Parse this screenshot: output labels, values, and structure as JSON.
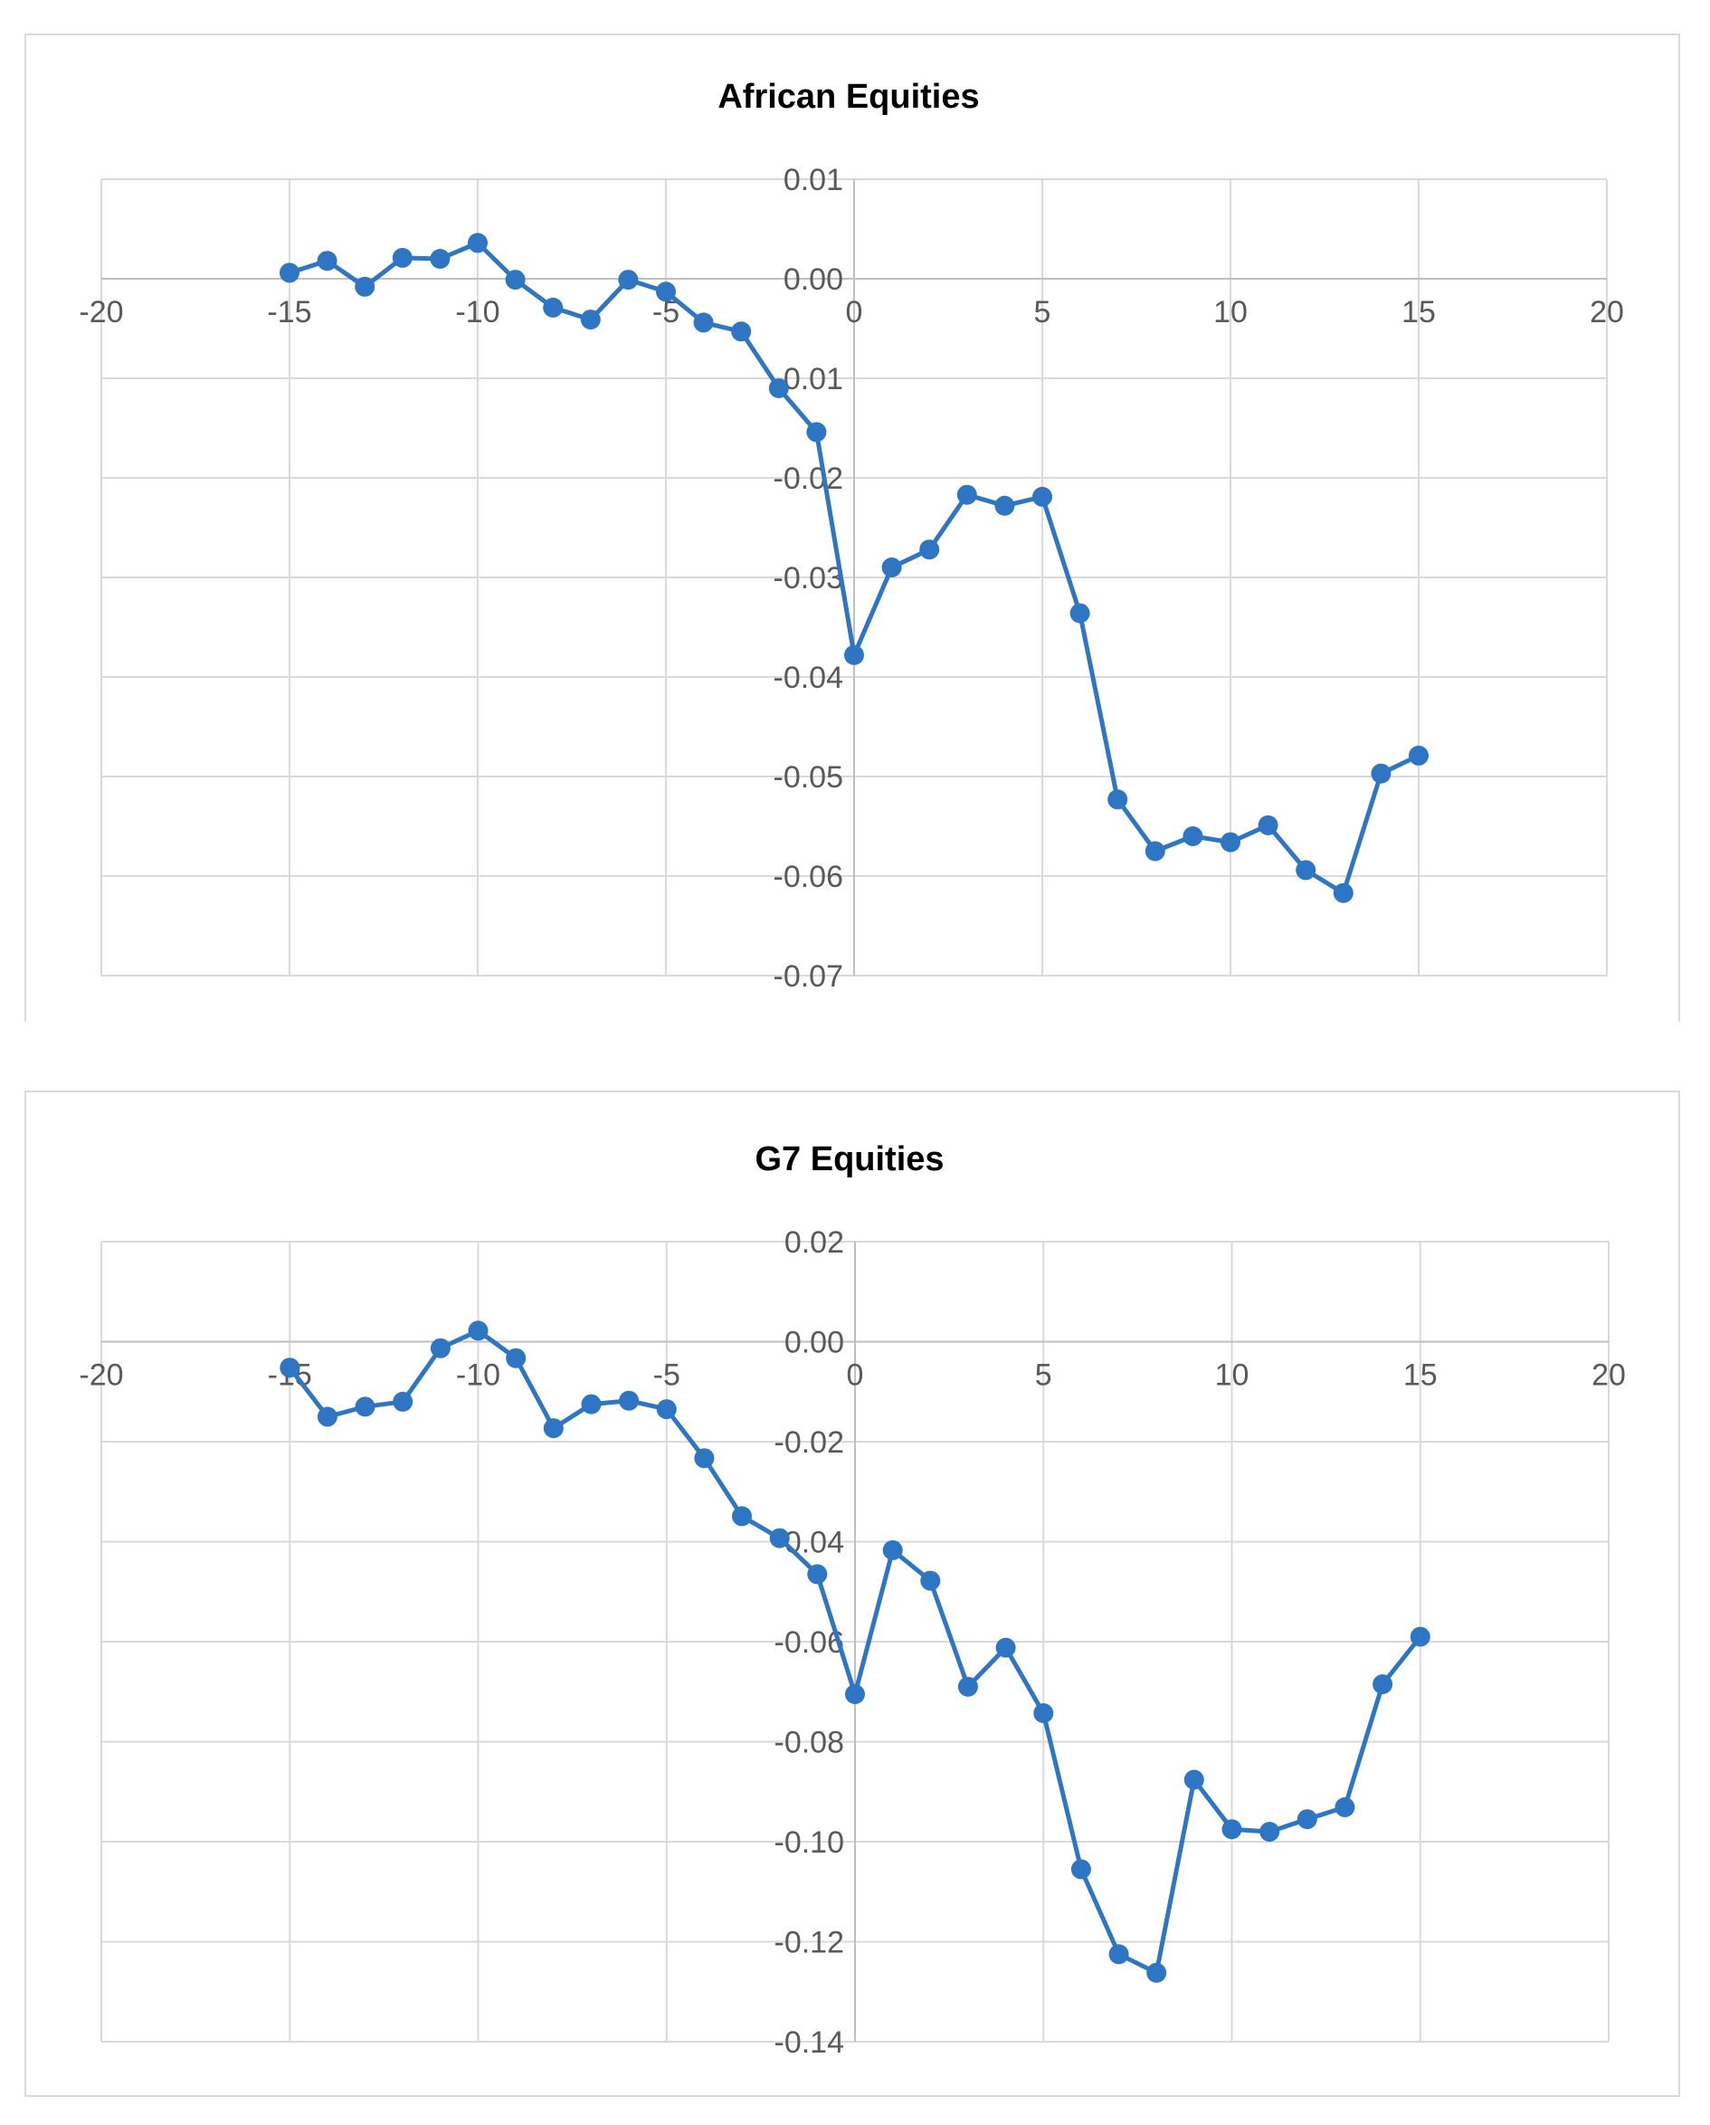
{
  "chart_data": [
    {
      "type": "scatter",
      "title": "African Equities",
      "xlabel": "",
      "ylabel": "",
      "xlim": [
        -20,
        20
      ],
      "ylim": [
        -0.07,
        0.01
      ],
      "xticks": [
        -20,
        -15,
        -10,
        -5,
        0,
        5,
        10,
        15,
        20
      ],
      "yticks": [
        0.01,
        0.0,
        -0.01,
        -0.02,
        -0.03,
        -0.04,
        -0.05,
        -0.06,
        -0.07
      ],
      "xtick_labels": [
        "-20",
        "-15",
        "-10",
        "-5",
        "0",
        "5",
        "10",
        "15",
        "20"
      ],
      "ytick_labels": [
        "0.01",
        "0.00",
        "-0.01",
        "-0.02",
        "-0.03",
        "-0.04",
        "-0.05",
        "-0.06",
        "-0.07"
      ],
      "grid": true,
      "legend": "none",
      "color": "#2E75C3",
      "series": [
        {
          "x": [
            -15,
            -14,
            -13,
            -12,
            -11,
            -10,
            -9,
            -8,
            -7,
            -6,
            -5,
            -4,
            -3,
            -2,
            -1,
            0,
            1,
            2,
            3,
            4,
            5,
            6,
            7,
            8,
            9,
            10,
            11,
            12,
            13,
            14,
            15
          ],
          "y": [
            0.0006,
            0.0018,
            -0.0008,
            0.0021,
            0.002,
            0.0036,
            -0.0001,
            -0.0029,
            -0.0041,
            -0.0001,
            -0.0013,
            -0.0044,
            -0.0053,
            -0.011,
            -0.0154,
            -0.0378,
            -0.029,
            -0.0272,
            -0.0217,
            -0.0228,
            -0.0219,
            -0.0336,
            -0.0523,
            -0.0575,
            -0.056,
            -0.0566,
            -0.0549,
            -0.0594,
            -0.0617,
            -0.0497,
            -0.0479
          ]
        }
      ]
    },
    {
      "type": "scatter",
      "title": "G7 Equities",
      "xlabel": "",
      "ylabel": "",
      "xlim": [
        -20,
        20
      ],
      "ylim": [
        -0.14,
        0.02
      ],
      "xticks": [
        -20,
        -15,
        -10,
        -5,
        0,
        5,
        10,
        15,
        20
      ],
      "yticks": [
        0.02,
        0.0,
        -0.02,
        -0.04,
        -0.06,
        -0.08,
        -0.1,
        -0.12,
        -0.14
      ],
      "xtick_labels": [
        "-20",
        "-15",
        "-10",
        "-5",
        "0",
        "5",
        "10",
        "15",
        "20"
      ],
      "ytick_labels": [
        "0.02",
        "0.00",
        "-0.02",
        "-0.04",
        "-0.06",
        "-0.08",
        "-0.10",
        "-0.12",
        "-0.14"
      ],
      "grid": true,
      "legend": "none",
      "color": "#2E75C3",
      "series": [
        {
          "x": [
            -15,
            -14,
            -13,
            -12,
            -11,
            -10,
            -9,
            -8,
            -7,
            -6,
            -5,
            -4,
            -3,
            -2,
            -1,
            0,
            1,
            2,
            3,
            4,
            5,
            6,
            7,
            8,
            9,
            10,
            11,
            12,
            13,
            14,
            15
          ],
          "y": [
            -0.0052,
            -0.015,
            -0.013,
            -0.012,
            -0.0013,
            0.0022,
            -0.0033,
            -0.0173,
            -0.0125,
            -0.0118,
            -0.0135,
            -0.0233,
            -0.0349,
            -0.0393,
            -0.0465,
            -0.0705,
            -0.0417,
            -0.0478,
            -0.069,
            -0.0612,
            -0.0743,
            -0.1055,
            -0.1225,
            -0.1262,
            -0.0876,
            -0.0975,
            -0.098,
            -0.0955,
            -0.0931,
            -0.0685,
            -0.059
          ]
        }
      ]
    }
  ]
}
